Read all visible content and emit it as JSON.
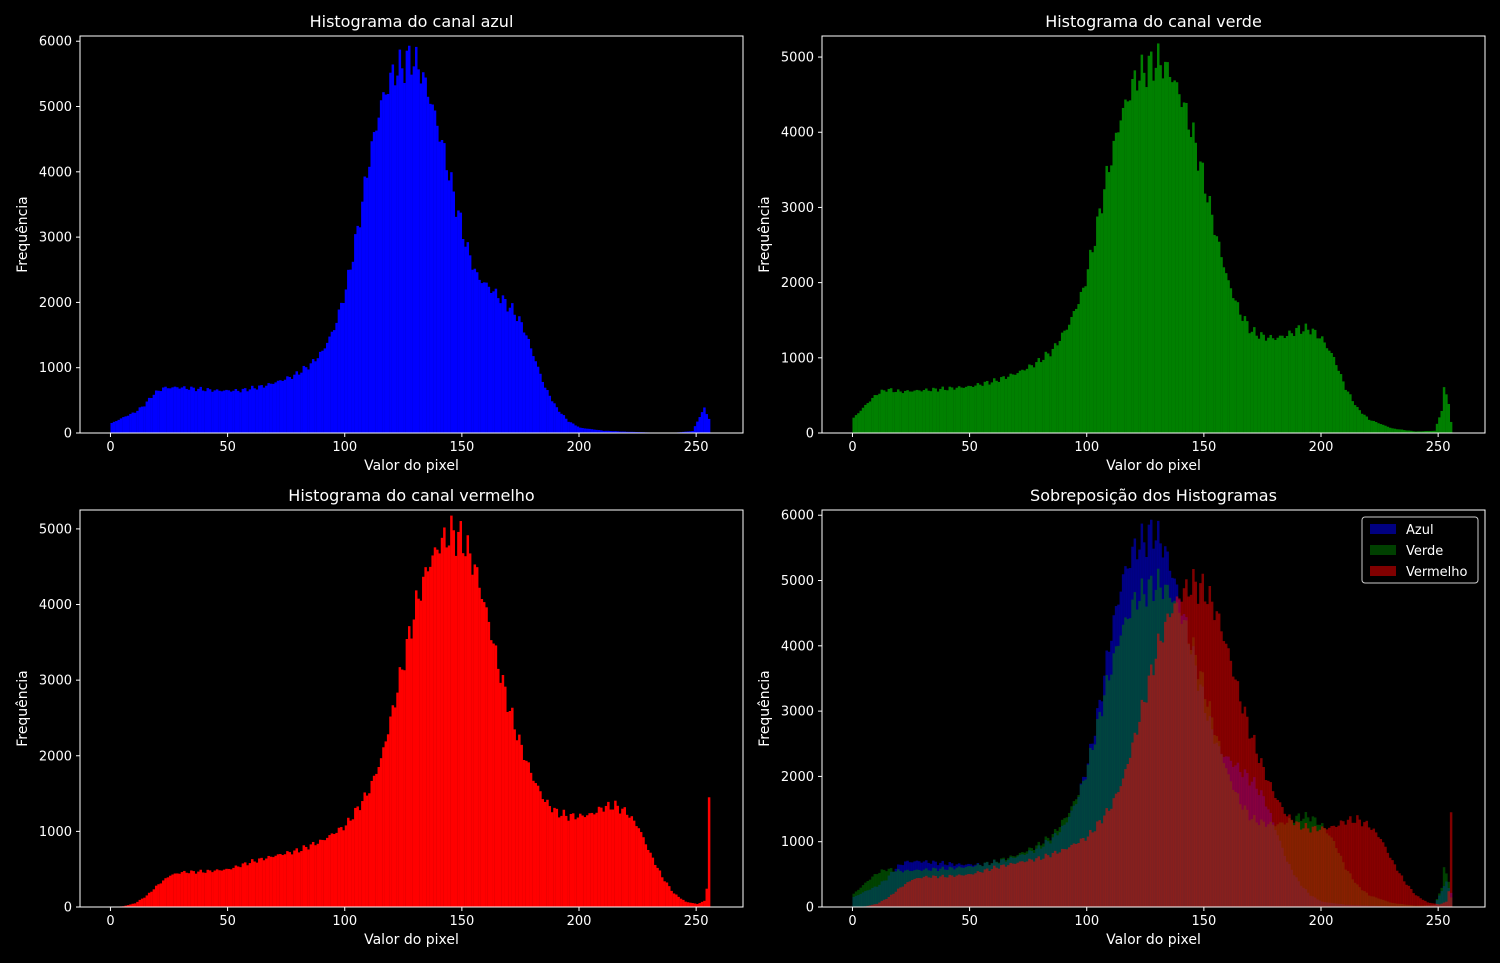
{
  "figure": {
    "background": "#000000",
    "text_color": "#ffffff"
  },
  "chart_data": [
    {
      "type": "bar",
      "title": "Histograma do canal azul",
      "xlabel": "Valor do pixel",
      "ylabel": "Frequência",
      "xlim": [
        -13,
        270
      ],
      "ylim": [
        0,
        6080
      ],
      "xticks": [
        0,
        50,
        100,
        150,
        200,
        250
      ],
      "yticks": [
        0,
        1000,
        2000,
        3000,
        4000,
        5000,
        6000
      ],
      "grid": false,
      "series": [
        {
          "color": "#0000ff",
          "opacity": 1,
          "profile": [
            [
              0,
              150
            ],
            [
              5,
              240
            ],
            [
              10,
              320
            ],
            [
              14,
              430
            ],
            [
              18,
              600
            ],
            [
              22,
              690
            ],
            [
              28,
              700
            ],
            [
              35,
              680
            ],
            [
              45,
              650
            ],
            [
              55,
              650
            ],
            [
              65,
              720
            ],
            [
              72,
              800
            ],
            [
              78,
              880
            ],
            [
              85,
              1050
            ],
            [
              90,
              1250
            ],
            [
              95,
              1600
            ],
            [
              100,
              2200
            ],
            [
              105,
              3100
            ],
            [
              110,
              4200
            ],
            [
              115,
              5050
            ],
            [
              120,
              5500
            ],
            [
              125,
              5650
            ],
            [
              128,
              5750
            ],
            [
              132,
              5550
            ],
            [
              137,
              5000
            ],
            [
              142,
              4300
            ],
            [
              147,
              3500
            ],
            [
              152,
              2800
            ],
            [
              156,
              2400
            ],
            [
              162,
              2200
            ],
            [
              168,
              2000
            ],
            [
              172,
              1850
            ],
            [
              176,
              1600
            ],
            [
              180,
              1200
            ],
            [
              185,
              700
            ],
            [
              190,
              380
            ],
            [
              195,
              180
            ],
            [
              200,
              80
            ],
            [
              210,
              35
            ],
            [
              220,
              20
            ],
            [
              230,
              8
            ],
            [
              240,
              4
            ],
            [
              248,
              30
            ],
            [
              251,
              250
            ],
            [
              253,
              380
            ],
            [
              255,
              220
            ]
          ]
        }
      ]
    },
    {
      "type": "bar",
      "title": "Histograma do canal verde",
      "xlabel": "Valor do pixel",
      "ylabel": "Frequência",
      "xlim": [
        -13,
        270
      ],
      "ylim": [
        0,
        5280
      ],
      "xticks": [
        0,
        50,
        100,
        150,
        200,
        250
      ],
      "yticks": [
        0,
        1000,
        2000,
        3000,
        4000,
        5000
      ],
      "grid": false,
      "series": [
        {
          "color": "#008000",
          "opacity": 1,
          "profile": [
            [
              0,
              200
            ],
            [
              3,
              300
            ],
            [
              6,
              400
            ],
            [
              10,
              520
            ],
            [
              14,
              580
            ],
            [
              20,
              550
            ],
            [
              30,
              570
            ],
            [
              40,
              590
            ],
            [
              50,
              620
            ],
            [
              60,
              690
            ],
            [
              70,
              800
            ],
            [
              78,
              930
            ],
            [
              85,
              1100
            ],
            [
              92,
              1450
            ],
            [
              98,
              1900
            ],
            [
              103,
              2600
            ],
            [
              108,
              3400
            ],
            [
              114,
              4200
            ],
            [
              120,
              4700
            ],
            [
              125,
              4850
            ],
            [
              130,
              4950
            ],
            [
              135,
              4800
            ],
            [
              140,
              4450
            ],
            [
              145,
              3950
            ],
            [
              150,
              3300
            ],
            [
              155,
              2600
            ],
            [
              160,
              2000
            ],
            [
              165,
              1600
            ],
            [
              170,
              1350
            ],
            [
              175,
              1280
            ],
            [
              180,
              1260
            ],
            [
              185,
              1300
            ],
            [
              190,
              1380
            ],
            [
              195,
              1380
            ],
            [
              200,
              1250
            ],
            [
              205,
              1000
            ],
            [
              210,
              600
            ],
            [
              215,
              330
            ],
            [
              220,
              180
            ],
            [
              230,
              60
            ],
            [
              240,
              20
            ],
            [
              248,
              30
            ],
            [
              251,
              300
            ],
            [
              252,
              600
            ],
            [
              254,
              400
            ],
            [
              255,
              150
            ]
          ]
        }
      ]
    },
    {
      "type": "bar",
      "title": "Histograma do canal vermelho",
      "xlabel": "Valor do pixel",
      "ylabel": "Frequência",
      "xlim": [
        -13,
        270
      ],
      "ylim": [
        0,
        5250
      ],
      "xticks": [
        0,
        50,
        100,
        150,
        200,
        250
      ],
      "yticks": [
        0,
        1000,
        2000,
        3000,
        4000,
        5000
      ],
      "grid": false,
      "series": [
        {
          "color": "#ff0000",
          "opacity": 1,
          "profile": [
            [
              0,
              0
            ],
            [
              5,
              10
            ],
            [
              10,
              50
            ],
            [
              15,
              150
            ],
            [
              20,
              300
            ],
            [
              25,
              420
            ],
            [
              30,
              460
            ],
            [
              40,
              470
            ],
            [
              50,
              500
            ],
            [
              60,
              600
            ],
            [
              70,
              680
            ],
            [
              80,
              750
            ],
            [
              90,
              880
            ],
            [
              100,
              1080
            ],
            [
              105,
              1300
            ],
            [
              110,
              1550
            ],
            [
              115,
              1950
            ],
            [
              120,
              2600
            ],
            [
              125,
              3300
            ],
            [
              130,
              4000
            ],
            [
              135,
              4500
            ],
            [
              140,
              4800
            ],
            [
              145,
              4950
            ],
            [
              150,
              4850
            ],
            [
              155,
              4500
            ],
            [
              160,
              3900
            ],
            [
              165,
              3200
            ],
            [
              170,
              2600
            ],
            [
              175,
              2100
            ],
            [
              180,
              1700
            ],
            [
              185,
              1400
            ],
            [
              190,
              1250
            ],
            [
              195,
              1200
            ],
            [
              200,
              1200
            ],
            [
              205,
              1230
            ],
            [
              210,
              1320
            ],
            [
              215,
              1340
            ],
            [
              220,
              1250
            ],
            [
              225,
              1050
            ],
            [
              230,
              700
            ],
            [
              235,
              400
            ],
            [
              240,
              180
            ],
            [
              245,
              70
            ],
            [
              250,
              40
            ],
            [
              253,
              80
            ],
            [
              254,
              250
            ],
            [
              255,
              1480
            ]
          ]
        }
      ]
    },
    {
      "type": "bar",
      "title": "Sobreposição dos Histogramas",
      "xlabel": "Valor do pixel",
      "ylabel": "Frequência",
      "xlim": [
        -13,
        270
      ],
      "ylim": [
        0,
        6080
      ],
      "xticks": [
        0,
        50,
        100,
        150,
        200,
        250
      ],
      "yticks": [
        0,
        1000,
        2000,
        3000,
        4000,
        5000,
        6000
      ],
      "grid": false,
      "legend": {
        "position": "top-right",
        "entries": [
          "Azul",
          "Verde",
          "Vermelho"
        ]
      },
      "series": [
        {
          "ref": 0,
          "color": "#0000ff",
          "opacity": 0.5
        },
        {
          "ref": 1,
          "color": "#008000",
          "opacity": 0.5
        },
        {
          "ref": 2,
          "color": "#ff0000",
          "opacity": 0.5
        }
      ]
    }
  ]
}
